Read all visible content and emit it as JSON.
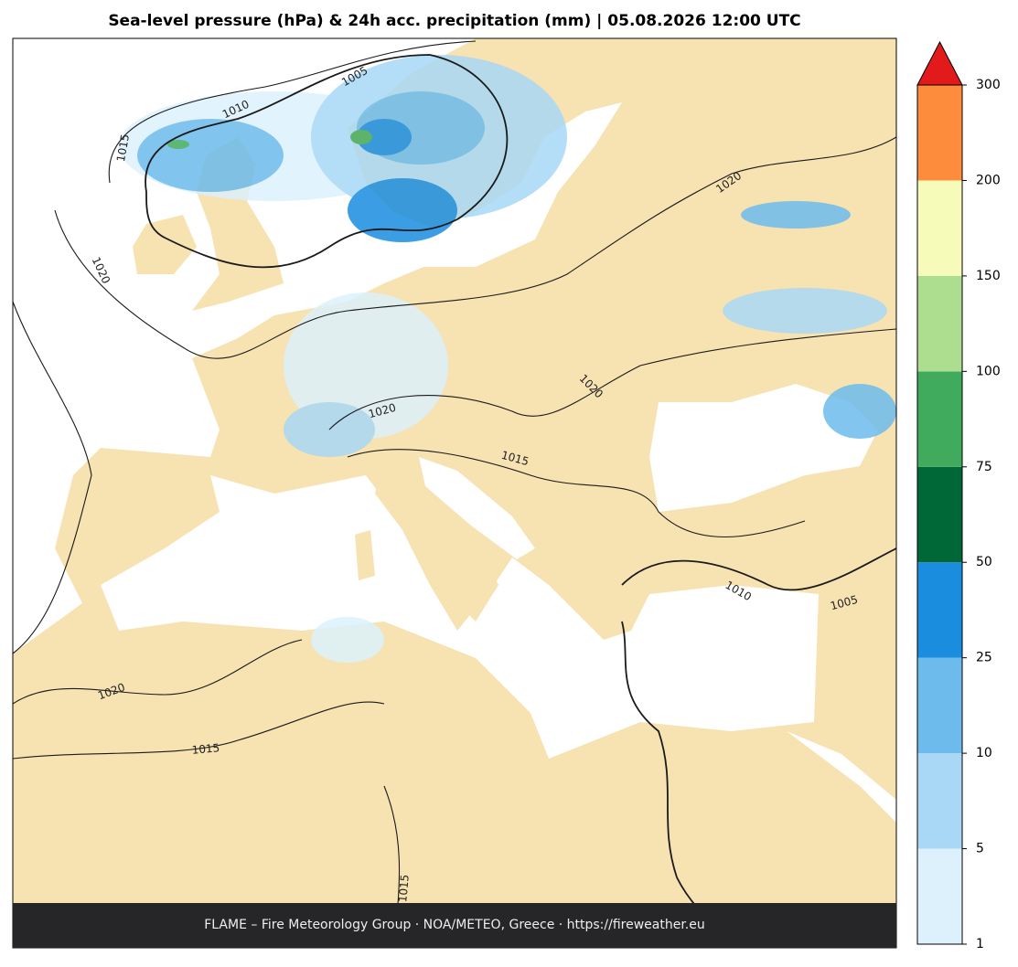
{
  "header": {
    "title": "Sea-level pressure (hPa) & 24h acc. precipitation (mm)  |  05.08.2026 12:00 UTC"
  },
  "map": {
    "contour_labels": [
      1010,
      1005,
      1015,
      1020,
      1020,
      1020,
      1020,
      1015,
      1010,
      1005,
      1020,
      1015,
      1015
    ]
  },
  "colorbar": {
    "ticks": [
      1,
      5,
      10,
      25,
      50,
      75,
      100,
      150,
      200,
      300
    ],
    "colors": [
      "#dcf1fc",
      "#a8d8f6",
      "#6cbbec",
      "#1a8ddf",
      "#006837",
      "#41ab5d",
      "#addd8e",
      "#f7fbb9",
      "#fd8d3c"
    ],
    "over_color": "#e31a1c"
  },
  "footer": {
    "text": "FLAME – Fire Meteorology Group · NOA/METEO, Greece · https://fireweather.eu"
  }
}
